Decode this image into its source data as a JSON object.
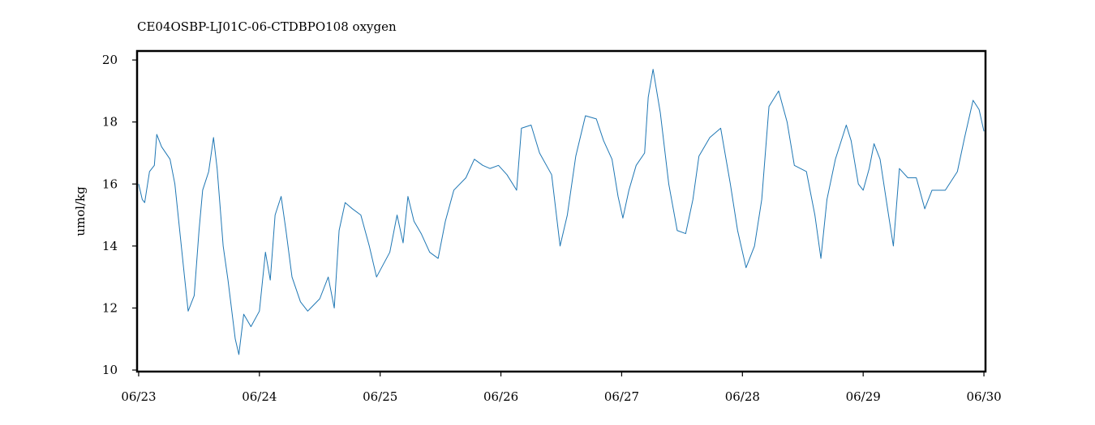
{
  "chart_data": {
    "type": "line",
    "title": "CE04OSBP-LJ01C-06-CTDBPO108 oxygen",
    "y_label": "umol/kg",
    "xlim": [
      -0.013,
      7.013
    ],
    "xticks": [
      {
        "value": 0,
        "label": "06/23"
      },
      {
        "value": 1,
        "label": "06/24"
      },
      {
        "value": 2,
        "label": "06/25"
      },
      {
        "value": 3,
        "label": "06/26"
      },
      {
        "value": 4,
        "label": "06/27"
      },
      {
        "value": 5,
        "label": "06/28"
      },
      {
        "value": 6,
        "label": "06/29"
      },
      {
        "value": 7,
        "label": "06/30"
      }
    ],
    "ylim": [
      9.95,
      20.29
    ],
    "yticks": [
      10,
      12,
      14,
      16,
      18,
      20
    ],
    "grid": false,
    "series": [
      {
        "name": "oxygen",
        "color": "#1f77b4",
        "x": [
          0.0,
          0.03,
          0.05,
          0.09,
          0.13,
          0.15,
          0.19,
          0.26,
          0.3,
          0.34,
          0.38,
          0.41,
          0.46,
          0.5,
          0.53,
          0.58,
          0.62,
          0.65,
          0.7,
          0.74,
          0.8,
          0.83,
          0.87,
          0.93,
          1.0,
          1.05,
          1.09,
          1.13,
          1.18,
          1.22,
          1.27,
          1.34,
          1.4,
          1.5,
          1.57,
          1.62,
          1.66,
          1.71,
          1.77,
          1.84,
          1.91,
          1.97,
          2.08,
          2.14,
          2.19,
          2.23,
          2.28,
          2.34,
          2.41,
          2.48,
          2.54,
          2.61,
          2.71,
          2.78,
          2.85,
          2.91,
          2.98,
          3.05,
          3.13,
          3.17,
          3.25,
          3.32,
          3.42,
          3.49,
          3.55,
          3.62,
          3.7,
          3.79,
          3.85,
          3.92,
          3.97,
          4.01,
          4.06,
          4.12,
          4.19,
          4.22,
          4.26,
          4.32,
          4.39,
          4.46,
          4.53,
          4.59,
          4.64,
          4.73,
          4.82,
          4.9,
          4.96,
          5.03,
          5.1,
          5.16,
          5.22,
          5.3,
          5.37,
          5.43,
          5.53,
          5.6,
          5.65,
          5.7,
          5.77,
          5.86,
          5.9,
          5.96,
          6.0,
          6.05,
          6.09,
          6.14,
          6.21,
          6.25,
          6.3,
          6.37,
          6.44,
          6.51,
          6.57,
          6.68,
          6.78,
          6.84,
          6.91,
          6.96,
          7.0
        ],
        "values": [
          16.0,
          15.5,
          15.4,
          16.4,
          16.6,
          17.6,
          17.2,
          16.8,
          16.0,
          14.5,
          13.0,
          11.9,
          12.4,
          14.5,
          15.8,
          16.4,
          17.5,
          16.5,
          14.0,
          12.9,
          11.0,
          10.5,
          11.8,
          11.4,
          11.9,
          13.8,
          12.9,
          15.0,
          15.6,
          14.5,
          13.0,
          12.2,
          11.9,
          12.3,
          13.0,
          12.0,
          14.5,
          15.4,
          15.2,
          15.0,
          14.0,
          13.0,
          13.8,
          15.0,
          14.1,
          15.6,
          14.8,
          14.4,
          13.8,
          13.6,
          14.8,
          15.8,
          16.2,
          16.8,
          16.6,
          16.5,
          16.6,
          16.3,
          15.8,
          17.8,
          17.9,
          17.0,
          16.3,
          14.0,
          15.0,
          16.9,
          18.2,
          18.1,
          17.4,
          16.8,
          15.6,
          14.9,
          15.8,
          16.6,
          17.0,
          18.8,
          19.7,
          18.3,
          16.0,
          14.5,
          14.4,
          15.5,
          16.9,
          17.5,
          17.8,
          16.0,
          14.5,
          13.3,
          14.0,
          15.5,
          18.5,
          19.0,
          18.0,
          16.6,
          16.4,
          15.0,
          13.6,
          15.5,
          16.8,
          17.9,
          17.4,
          16.0,
          15.8,
          16.5,
          17.3,
          16.8,
          15.0,
          14.0,
          16.5,
          16.2,
          16.2,
          15.2,
          15.8,
          15.8,
          16.4,
          17.5,
          18.7,
          18.4,
          17.7
        ]
      }
    ]
  }
}
